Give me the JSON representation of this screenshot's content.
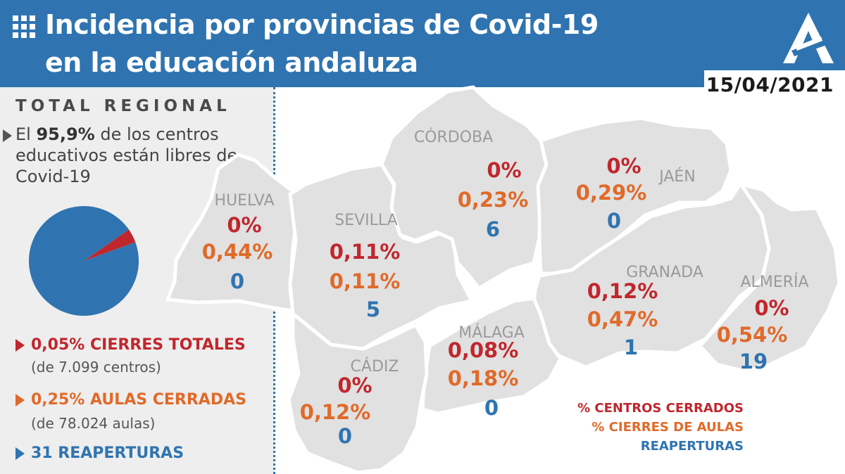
{
  "header": {
    "icon": "grid-icon",
    "title_line1": "Incidencia por provincias de Covid-19",
    "title_line2": "en la educación andaluza",
    "logo_icon": "junta-andalucia-logo",
    "date": "15/04/2021"
  },
  "colors": {
    "header": "#2f74b0",
    "closed_centers": "#c0272d",
    "closed_classrooms": "#e06a2a",
    "reopenings": "#2f74b0",
    "map_fill": "#e1e1e1",
    "panel": "#eeeeee"
  },
  "regional": {
    "title": "TOTAL REGIONAL",
    "free_prefix": "El ",
    "free_pct": "95,9%",
    "free_suffix": " de los centros educativos están libres de Covid-19",
    "closures_total": "0,05% CIERRES TOTALES",
    "closures_total_sub": "(de 7.099 centros)",
    "classrooms_closed": "0,25% AULAS CERRADAS",
    "classrooms_closed_sub": "(de 78.024 aulas)",
    "reopenings": "31 REAPERTURAS"
  },
  "chart_data": [
    {
      "type": "pie",
      "labels": [
        "",
        ""
      ],
      "values": [
        95.9,
        4.1
      ],
      "colors": [
        "#2f74b0",
        "#c0272d"
      ]
    },
    {
      "type": "table",
      "columns": [
        "province",
        "closed_centers_pct",
        "closed_classrooms_pct",
        "reopenings"
      ],
      "rows": [
        {
          "province": "HUELVA",
          "closed_centers_pct": "0%",
          "closed_classrooms_pct": "0,44%",
          "reopenings": "0"
        },
        {
          "province": "SEVILLA",
          "closed_centers_pct": "0,11%",
          "closed_classrooms_pct": "0,11%",
          "reopenings": "5"
        },
        {
          "province": "CÓRDOBA",
          "closed_centers_pct": "0%",
          "closed_classrooms_pct": "0,23%",
          "reopenings": "6"
        },
        {
          "province": "JAÉN",
          "closed_centers_pct": "0%",
          "closed_classrooms_pct": "0,29%",
          "reopenings": "0"
        },
        {
          "province": "GRANADA",
          "closed_centers_pct": "0,12%",
          "closed_classrooms_pct": "0,47%",
          "reopenings": "1"
        },
        {
          "province": "ALMERÍA",
          "closed_centers_pct": "0%",
          "closed_classrooms_pct": "0,54%",
          "reopenings": "19"
        },
        {
          "province": "MÁLAGA",
          "closed_centers_pct": "0,08%",
          "closed_classrooms_pct": "0,18%",
          "reopenings": "0"
        },
        {
          "province": "CÁDIZ",
          "closed_centers_pct": "0%",
          "closed_classrooms_pct": "0,12%",
          "reopenings": "0"
        }
      ]
    }
  ],
  "legend": {
    "closed_centers": "% CENTROS CERRADOS",
    "closed_classrooms": "% CIERRES DE AULAS",
    "reopenings": "REAPERTURAS"
  }
}
